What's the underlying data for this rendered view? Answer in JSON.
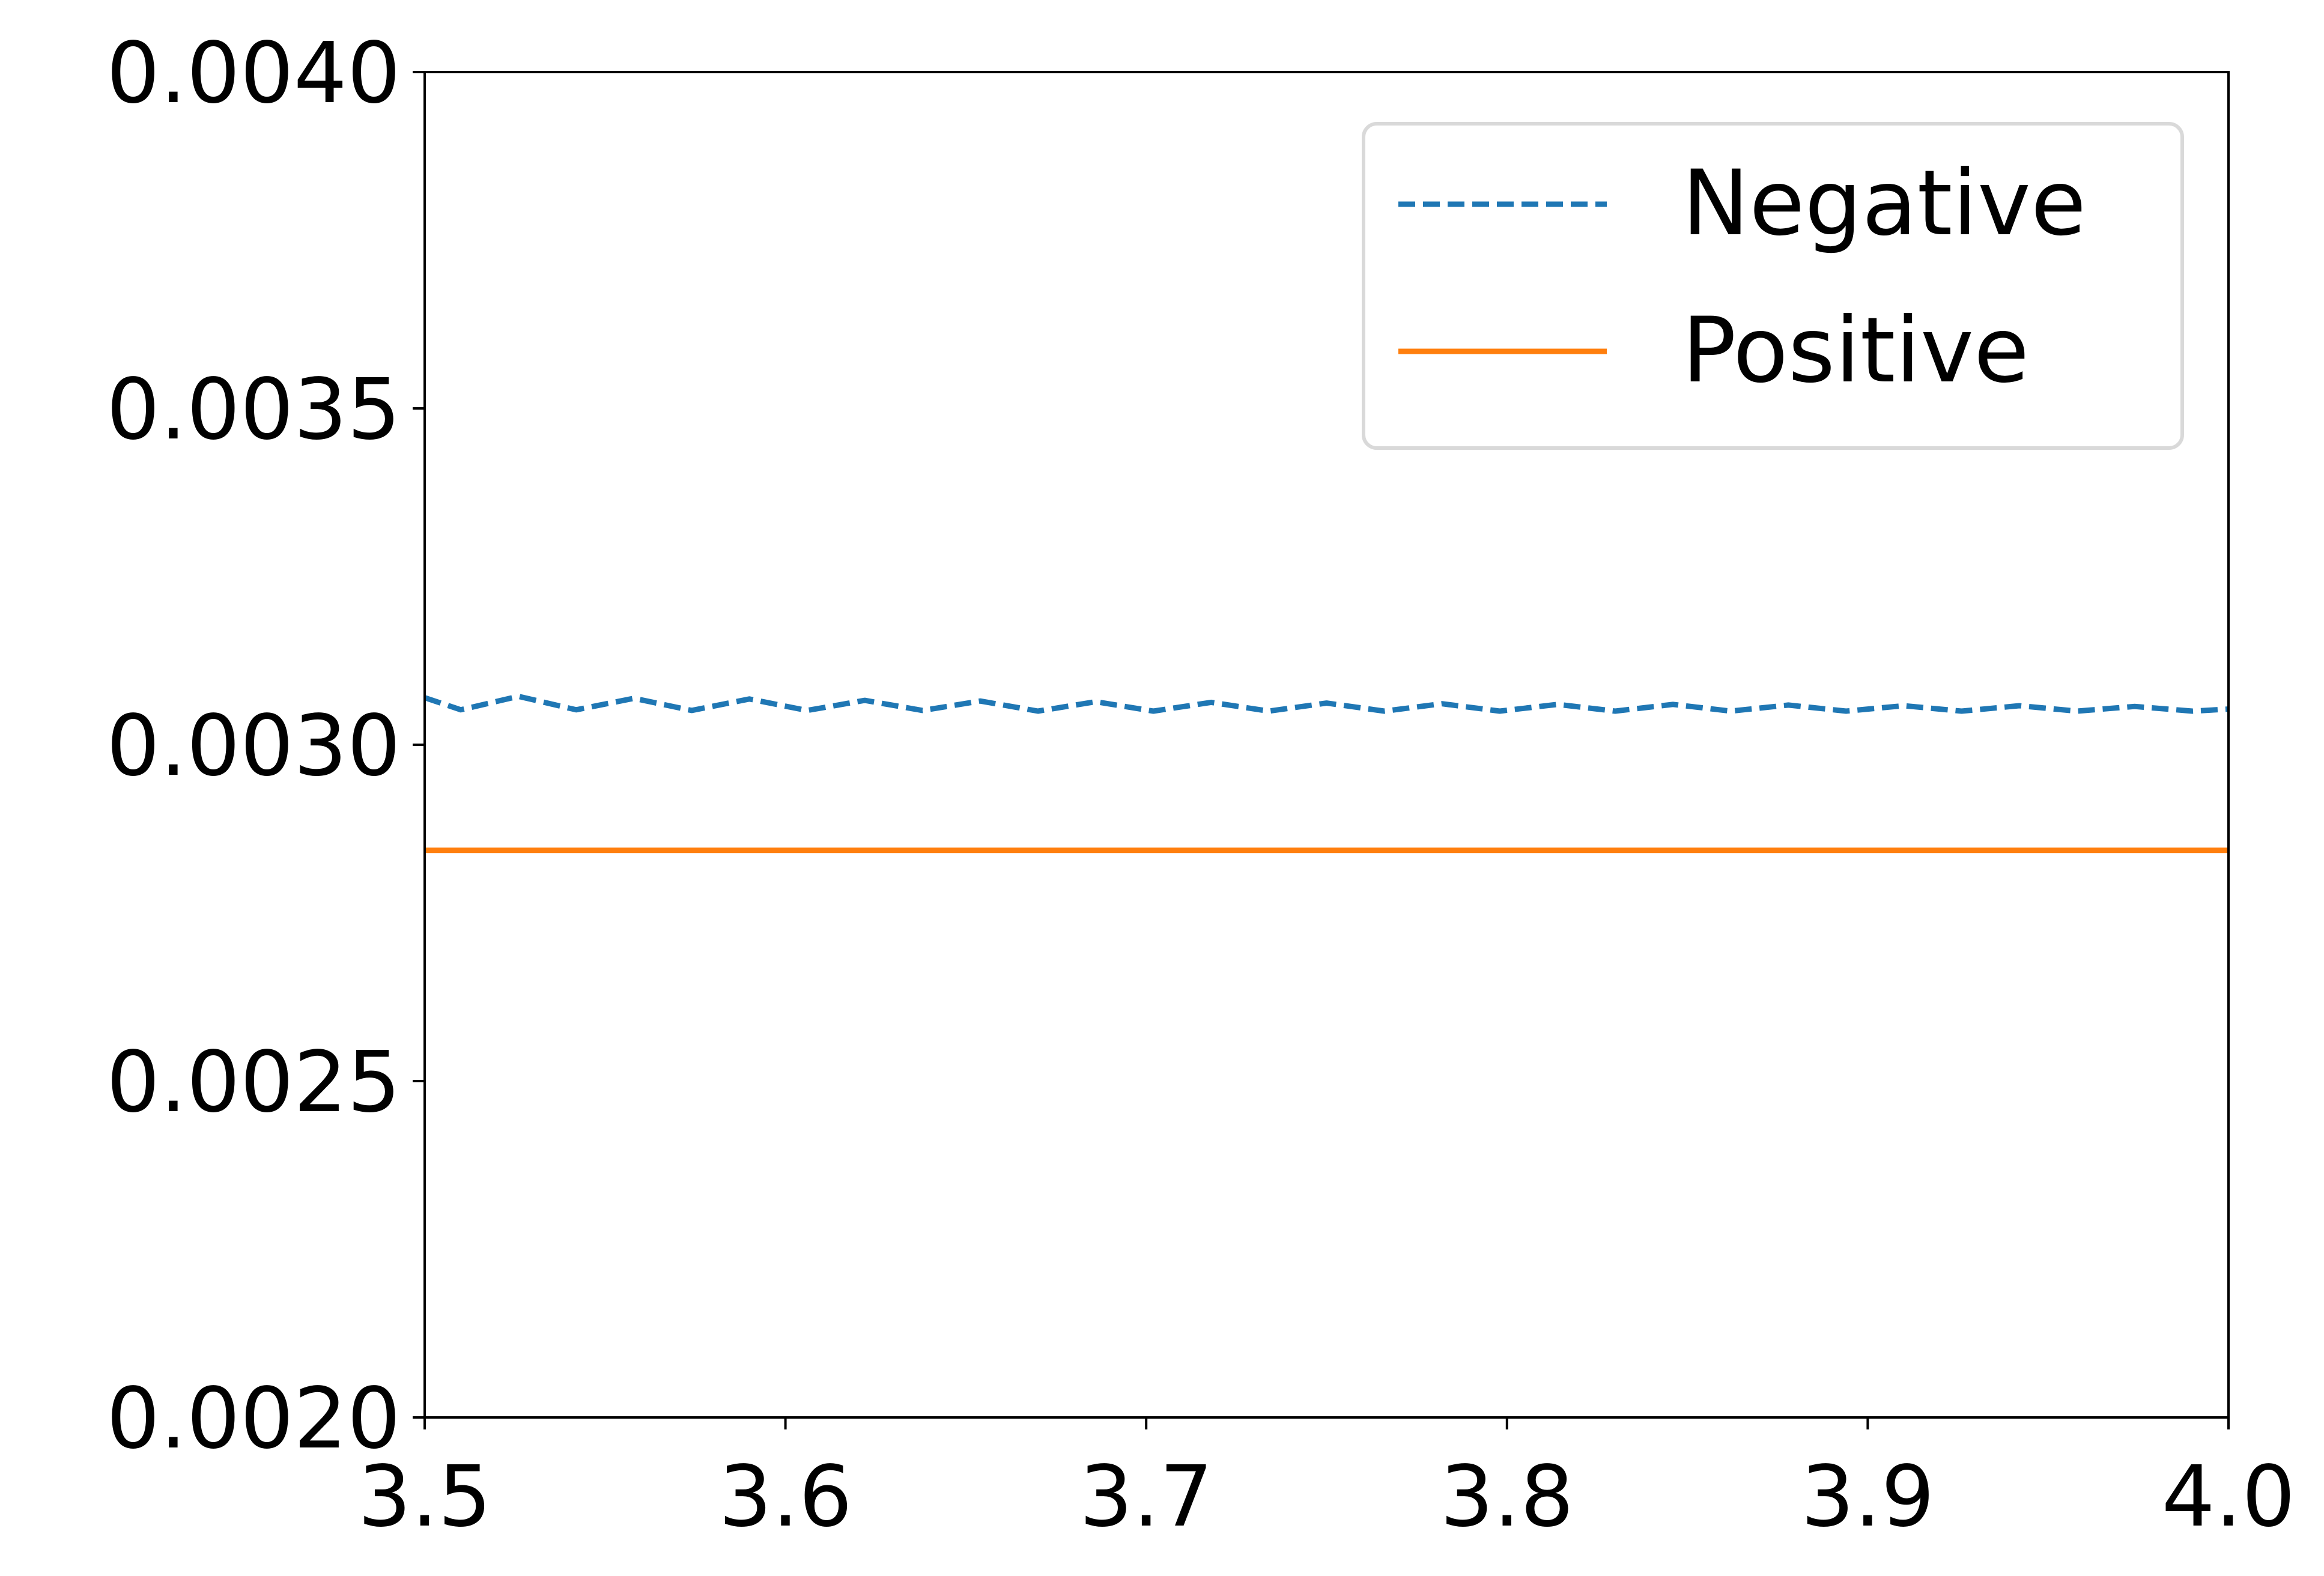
{
  "chart_data": {
    "type": "line",
    "title": "",
    "xlabel": "",
    "ylabel": "",
    "xlim": [
      3.5,
      4.0
    ],
    "ylim": [
      0.002,
      0.004
    ],
    "x_ticks": [
      "3.5",
      "3.6",
      "3.7",
      "3.8",
      "3.9",
      "4.0"
    ],
    "y_ticks": [
      "0.0020",
      "0.0025",
      "0.0030",
      "0.0035",
      "0.0040"
    ],
    "grid": false,
    "legend_position": "top-right",
    "series": [
      {
        "name": "Negative",
        "style": "dashed",
        "color": "#1f77b4",
        "x": [
          3.5,
          3.51,
          3.526,
          3.542,
          3.558,
          3.574,
          3.59,
          3.606,
          3.622,
          3.638,
          3.654,
          3.67,
          3.686,
          3.702,
          3.718,
          3.734,
          3.75,
          3.766,
          3.782,
          3.798,
          3.814,
          3.83,
          3.846,
          3.862,
          3.878,
          3.894,
          3.91,
          3.926,
          3.942,
          3.958,
          3.974,
          3.99,
          4.0
        ],
        "y": [
          0.00307,
          0.003052,
          0.003072,
          0.003052,
          0.003069,
          0.003051,
          0.003068,
          0.003051,
          0.003066,
          0.003051,
          0.003065,
          0.00305,
          0.003064,
          0.00305,
          0.003063,
          0.00305,
          0.003062,
          0.00305,
          0.003061,
          0.00305,
          0.00306,
          0.00305,
          0.00306,
          0.00305,
          0.003059,
          0.00305,
          0.003058,
          0.00305,
          0.003058,
          0.00305,
          0.003057,
          0.00305,
          0.003053
        ]
      },
      {
        "name": "Positive",
        "style": "solid",
        "color": "#ff7f0e",
        "x": [
          3.5,
          4.0
        ],
        "y": [
          0.002843,
          0.002843
        ]
      }
    ]
  }
}
